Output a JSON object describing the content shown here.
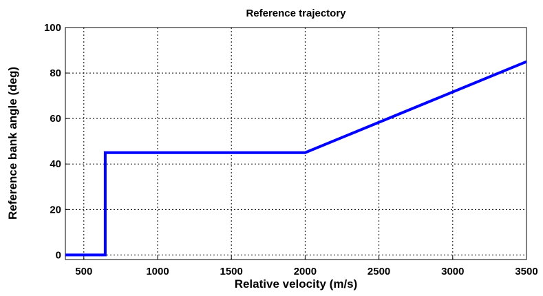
{
  "chart_data": {
    "type": "line",
    "title": "Reference trajectory",
    "x_label": "Relative velocity (m/s)",
    "y_label": "Reference bank angle (deg)",
    "x": [
      375,
      645,
      645,
      2000,
      3500
    ],
    "series": [
      {
        "name": "Reference bank angle",
        "color": "#0000ff",
        "values": [
          0,
          0,
          45,
          45,
          85
        ]
      }
    ],
    "xlim": [
      375,
      3500
    ],
    "ylim": [
      -2,
      100
    ],
    "xticks": [
      500,
      1000,
      1500,
      2000,
      2500,
      3000,
      3500
    ],
    "yticks": [
      0,
      20,
      40,
      60,
      80,
      100
    ],
    "grid": true
  }
}
